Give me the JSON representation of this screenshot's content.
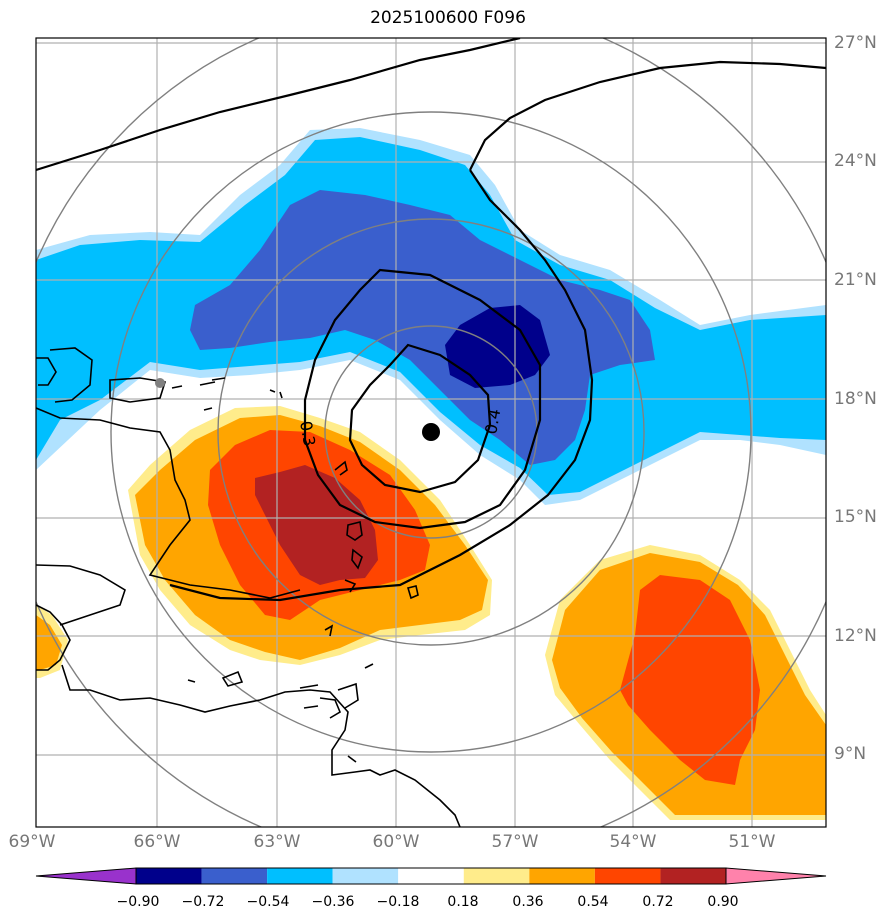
{
  "title": "2025100600 F096",
  "lon_labels": [
    "69°W",
    "66°W",
    "63°W",
    "60°W",
    "57°W",
    "54°W",
    "51°W"
  ],
  "lat_labels": [
    "27°N",
    "24°N",
    "21°N",
    "18°N",
    "15°N",
    "12°N",
    "9°N"
  ],
  "contour_labels": [
    "0.3",
    "0.4"
  ],
  "colorbar": {
    "labels": [
      "−0.90",
      "−0.72",
      "−0.54",
      "−0.36",
      "−0.18",
      "0.18",
      "0.36",
      "0.54",
      "0.72",
      "0.90"
    ],
    "colors": [
      "#9932cc",
      "#00008b",
      "#3a5fcd",
      "#00bfff",
      "#b0e2ff",
      "#ffffff",
      "#ffec8b",
      "#ffa500",
      "#ff4500",
      "#b22222",
      "#ff82ab"
    ]
  },
  "map": {
    "extent": {
      "lon_min": -69.0,
      "lon_max": -49.0,
      "lat_min": 7.3,
      "lat_max": 27.1
    },
    "center_marker": {
      "lon": -59.0,
      "lat": 17.2
    },
    "gray_marker": {
      "lon": -66.0,
      "lat": 18.4
    },
    "range_rings": "concentric circles around storm center"
  }
}
